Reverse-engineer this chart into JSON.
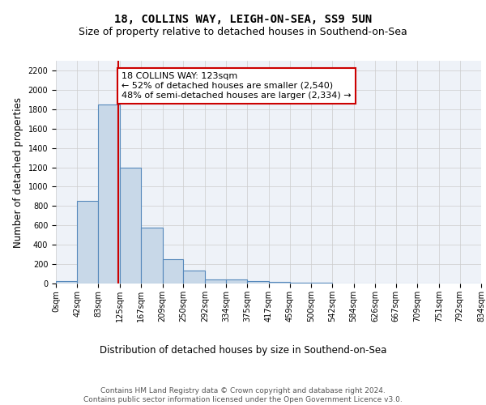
{
  "title1": "18, COLLINS WAY, LEIGH-ON-SEA, SS9 5UN",
  "title2": "Size of property relative to detached houses in Southend-on-Sea",
  "xlabel": "Distribution of detached houses by size in Southend-on-Sea",
  "ylabel": "Number of detached properties",
  "bin_edges": [
    0,
    42,
    83,
    125,
    167,
    209,
    250,
    292,
    334,
    375,
    417,
    459,
    500,
    542,
    584,
    626,
    667,
    709,
    751,
    792,
    834
  ],
  "bar_heights": [
    25,
    850,
    1850,
    1200,
    580,
    255,
    130,
    40,
    40,
    25,
    15,
    5,
    5,
    2,
    0,
    0,
    0,
    0,
    0,
    0
  ],
  "bar_color": "#c8d8e8",
  "bar_edge_color": "#5588bb",
  "bar_linewidth": 0.8,
  "grid_color": "#cccccc",
  "background_color": "#eef2f8",
  "property_size": 123,
  "red_line_color": "#cc0000",
  "annotation_text": "18 COLLINS WAY: 123sqm\n← 52% of detached houses are smaller (2,540)\n48% of semi-detached houses are larger (2,334) →",
  "annotation_box_color": "white",
  "annotation_box_edge": "#cc0000",
  "ylim": [
    0,
    2300
  ],
  "yticks": [
    0,
    200,
    400,
    600,
    800,
    1000,
    1200,
    1400,
    1600,
    1800,
    2000,
    2200
  ],
  "footer_text": "Contains HM Land Registry data © Crown copyright and database right 2024.\nContains public sector information licensed under the Open Government Licence v3.0.",
  "title1_fontsize": 10,
  "title2_fontsize": 9,
  "xlabel_fontsize": 8.5,
  "ylabel_fontsize": 8.5,
  "tick_fontsize": 7,
  "annotation_fontsize": 8,
  "footer_fontsize": 6.5
}
